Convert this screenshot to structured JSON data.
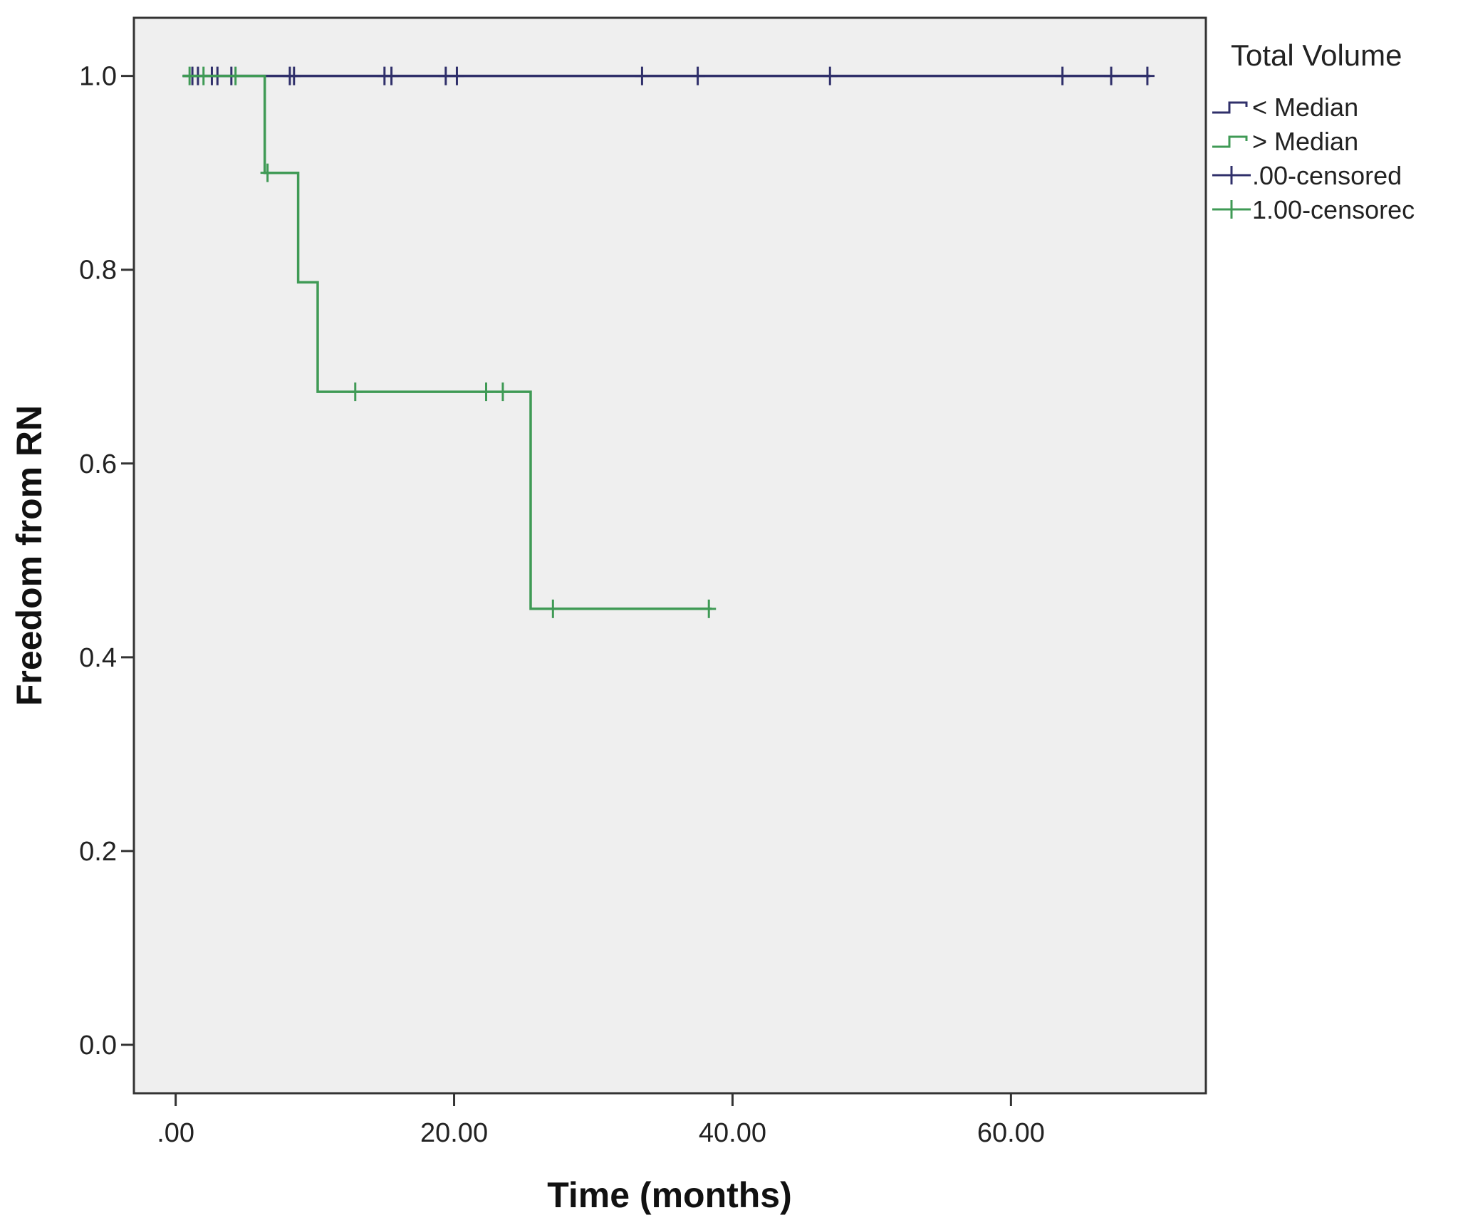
{
  "chart_data": {
    "type": "line",
    "subtype": "kaplan-meier-step",
    "xlabel": "Time (months)",
    "ylabel": "Freedom from RN",
    "xlim": [
      -3,
      74
    ],
    "ylim": [
      -0.05,
      1.06
    ],
    "x_ticks": [
      0,
      20,
      40,
      60
    ],
    "x_tick_labels": [
      ".00",
      "20.00",
      "40.00",
      "60.00"
    ],
    "y_ticks": [
      0,
      0.2,
      0.4,
      0.6,
      0.8,
      1.0
    ],
    "y_tick_labels": [
      "0.0",
      "0.2",
      "0.4",
      "0.6",
      "0.8",
      "1.0"
    ],
    "grid": false,
    "legend_title": "Total Volume",
    "legend_position": "outside-right-top",
    "plot_background": "#efefef",
    "series": [
      {
        "name": "< Median",
        "color": "#2f2f6a",
        "steps": [
          [
            0.5,
            1.0
          ],
          [
            70.0,
            1.0
          ]
        ],
        "censored": [
          [
            1.2,
            1.0
          ],
          [
            1.6,
            1.0
          ],
          [
            2.6,
            1.0
          ],
          [
            3.0,
            1.0
          ],
          [
            4.0,
            1.0
          ],
          [
            8.2,
            1.0
          ],
          [
            8.5,
            1.0
          ],
          [
            15.0,
            1.0
          ],
          [
            15.5,
            1.0
          ],
          [
            19.4,
            1.0
          ],
          [
            20.2,
            1.0
          ],
          [
            33.5,
            1.0
          ],
          [
            37.5,
            1.0
          ],
          [
            47.0,
            1.0
          ],
          [
            63.7,
            1.0
          ],
          [
            67.2,
            1.0
          ],
          [
            69.8,
            1.0
          ]
        ]
      },
      {
        "name": "> Median",
        "color": "#3f9a55",
        "steps": [
          [
            0.5,
            1.0
          ],
          [
            6.4,
            1.0
          ],
          [
            6.4,
            0.9
          ],
          [
            8.8,
            0.9
          ],
          [
            8.8,
            0.787
          ],
          [
            10.2,
            0.787
          ],
          [
            10.2,
            0.674
          ],
          [
            25.5,
            0.674
          ],
          [
            25.5,
            0.45
          ],
          [
            38.5,
            0.45
          ]
        ],
        "censored": [
          [
            1.0,
            1.0
          ],
          [
            2.0,
            1.0
          ],
          [
            4.3,
            1.0
          ],
          [
            6.6,
            0.9
          ],
          [
            12.9,
            0.674
          ],
          [
            22.3,
            0.674
          ],
          [
            23.5,
            0.674
          ],
          [
            27.1,
            0.45
          ],
          [
            38.3,
            0.45
          ]
        ]
      }
    ],
    "legend_entries": [
      {
        "label": "< Median",
        "symbol": "step",
        "color": "#2f2f6a"
      },
      {
        "label": "> Median",
        "symbol": "step",
        "color": "#3f9a55"
      },
      {
        "label": ".00-censored",
        "symbol": "plus",
        "color": "#2f2f6a"
      },
      {
        "label": "1.00-censorec",
        "symbol": "plus",
        "color": "#3f9a55"
      }
    ]
  }
}
